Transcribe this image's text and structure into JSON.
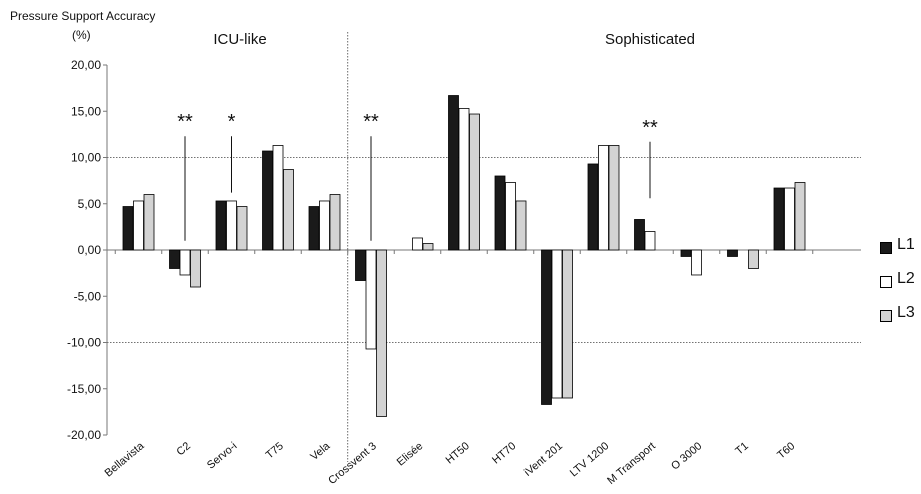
{
  "chart_data": {
    "type": "bar",
    "ylabel": "Pressure Support Accuracy",
    "yunit": "(%)",
    "ylim": [
      -20,
      20
    ],
    "yticks": [
      20,
      15,
      10,
      5,
      0,
      -5,
      -10,
      -15,
      -20
    ],
    "ytick_labels": [
      "20,00",
      "15,00",
      "10,00",
      "5,00",
      "0,00",
      "-5,00",
      "-10,00",
      "-15,00",
      "-20,00"
    ],
    "reference_lines": [
      10,
      -10
    ],
    "groups": [
      {
        "title": "ICU-like",
        "categories": [
          "Bellavista",
          "C2",
          "Servo-i",
          "T75",
          "Vela"
        ]
      },
      {
        "title": "Sophisticated",
        "categories": [
          "Crossvent 3",
          "Elisée",
          "HT50",
          "HT70",
          "iVent 201",
          "LTV 1200",
          "M Transport",
          "O 3000",
          "T1",
          "T60"
        ]
      }
    ],
    "categories": [
      "Bellavista",
      "C2",
      "Servo-i",
      "T75",
      "Vela",
      "Crossvent 3",
      "Elisée",
      "HT50",
      "HT70",
      "iVent 201",
      "LTV 1200",
      "M Transport",
      "O 3000",
      "T1",
      "T60"
    ],
    "series": [
      {
        "name": "L1",
        "color": "#1a1a1a",
        "values": [
          4.7,
          -2.0,
          5.3,
          10.7,
          4.7,
          -3.3,
          0.0,
          16.7,
          8.0,
          -16.7,
          9.3,
          3.3,
          -0.7,
          -0.7,
          6.7
        ]
      },
      {
        "name": "L2",
        "color": "#ffffff",
        "values": [
          5.3,
          -2.7,
          5.3,
          11.3,
          5.3,
          -10.7,
          1.3,
          15.3,
          7.3,
          -16.0,
          11.3,
          2.0,
          -2.7,
          0.0,
          6.7
        ]
      },
      {
        "name": "L3",
        "color": "#d3d3d3",
        "values": [
          6.0,
          -4.0,
          4.7,
          8.7,
          6.0,
          -18.0,
          0.7,
          14.7,
          5.3,
          -16.0,
          11.3,
          0.0,
          0.0,
          -2.0,
          7.3
        ]
      }
    ],
    "annotations": [
      {
        "category": "C2",
        "text": "**",
        "line_top": 12.3,
        "line_bottom": 1.0
      },
      {
        "category": "Servo-i",
        "text": "*",
        "line_top": 12.3,
        "line_bottom": 6.2
      },
      {
        "category": "Crossvent 3",
        "text": "**",
        "line_top": 12.3,
        "line_bottom": 1.0
      },
      {
        "category": "M Transport",
        "text": "**",
        "line_top": 11.7,
        "line_bottom": 5.6
      }
    ],
    "legend_position": "right",
    "grid": false
  }
}
